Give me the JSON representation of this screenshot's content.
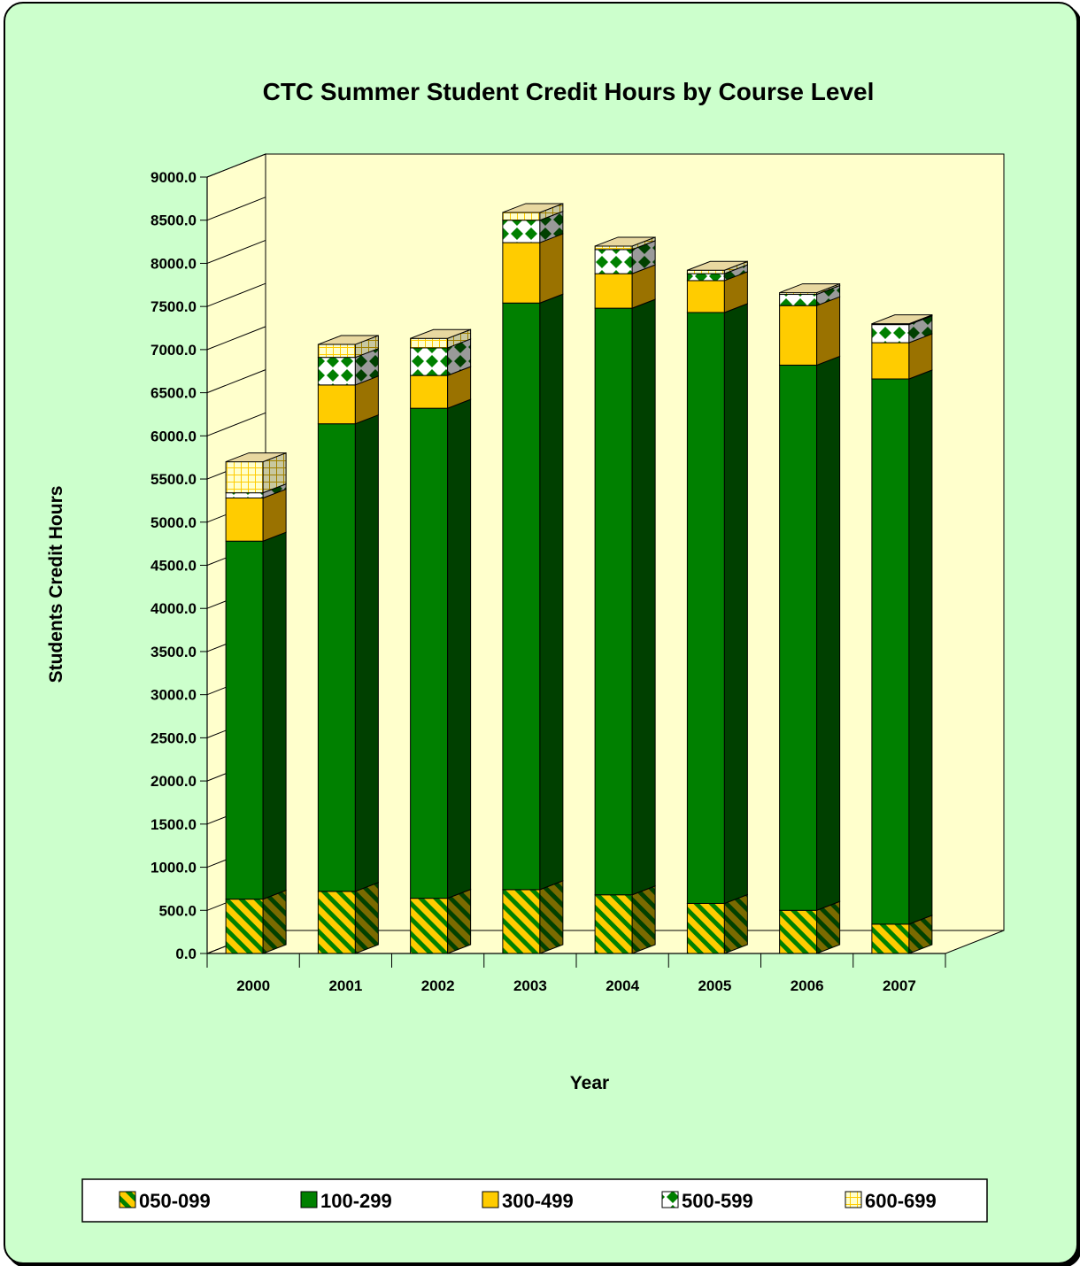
{
  "chart_data": {
    "type": "bar",
    "stacked": true,
    "three_d": true,
    "title": "CTC Summer Student Credit Hours by Course Level",
    "xlabel": "Year",
    "ylabel": "Students Credit Hours",
    "ylim": [
      0,
      9000
    ],
    "ytick_step": 500,
    "ytick_labels": [
      "0.0",
      "500.0",
      "1000.0",
      "1500.0",
      "2000.0",
      "2500.0",
      "3000.0",
      "3500.0",
      "4000.0",
      "4500.0",
      "5000.0",
      "5500.0",
      "6000.0",
      "6500.0",
      "7000.0",
      "7500.0",
      "8000.0",
      "8500.0",
      "9000.0"
    ],
    "categories": [
      "2000",
      "2001",
      "2002",
      "2003",
      "2004",
      "2005",
      "2006",
      "2007"
    ],
    "series": [
      {
        "name": "050-099",
        "color": "#ffcc00",
        "pattern": "diagonal-stripes",
        "pattern_color": "#008000",
        "values": [
          630,
          720,
          640,
          740,
          680,
          580,
          500,
          340
        ]
      },
      {
        "name": "100-299",
        "color": "#008000",
        "pattern": "solid",
        "values": [
          4150,
          5420,
          5680,
          6800,
          6800,
          6850,
          6320,
          6320
        ]
      },
      {
        "name": "300-499",
        "color": "#ffcc00",
        "pattern": "solid",
        "values": [
          500,
          450,
          380,
          700,
          400,
          370,
          690,
          420
        ]
      },
      {
        "name": "500-599",
        "color": "#ffffff",
        "pattern": "diamonds",
        "pattern_color": "#008000",
        "values": [
          60,
          320,
          320,
          260,
          280,
          80,
          130,
          210
        ]
      },
      {
        "name": "600-699",
        "color": "#ffffcc",
        "pattern": "grid",
        "pattern_color": "#ffcc00",
        "values": [
          360,
          150,
          110,
          90,
          40,
          40,
          20,
          10
        ]
      }
    ],
    "legend_position": "bottom",
    "grid": false,
    "plot_background": "#ffffcc",
    "chart_background": "#ccffcc"
  }
}
